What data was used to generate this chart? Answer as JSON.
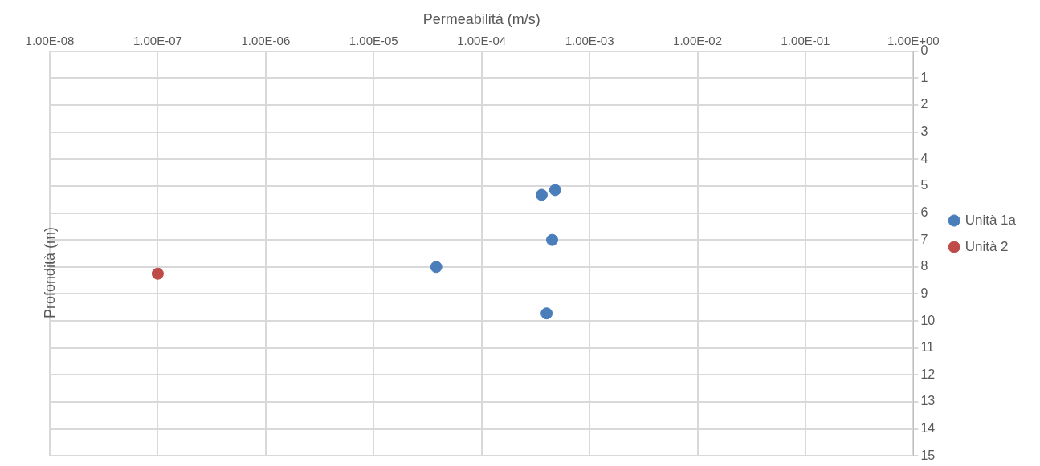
{
  "chart_data": {
    "type": "scatter",
    "xlabel": "Permeabilità (m/s)",
    "ylabel": "Profondità (m)",
    "series": [
      {
        "name": "Unità 1a",
        "color": "#4a7ebb",
        "x": [
          0.00048,
          0.00036,
          0.00045,
          3.8e-05,
          0.0004
        ],
        "values": [
          5.15,
          5.33,
          7.0,
          8.0,
          9.72
        ]
      },
      {
        "name": "Unità 2",
        "color": "#be4b48",
        "x": [
          1e-07
        ],
        "values": [
          8.25
        ]
      }
    ],
    "log": "x",
    "xlim": [
      1e-08,
      1
    ],
    "xticks": [
      {
        "value": 1e-08,
        "label": "1.00E-08"
      },
      {
        "value": 1e-07,
        "label": "1.00E-07"
      },
      {
        "value": 1e-06,
        "label": "1.00E-06"
      },
      {
        "value": 1e-05,
        "label": "1.00E-05"
      },
      {
        "value": 0.0001,
        "label": "1.00E-04"
      },
      {
        "value": 0.001,
        "label": "1.00E-03"
      },
      {
        "value": 0.01,
        "label": "1.00E-02"
      },
      {
        "value": 0.1,
        "label": "1.00E-01"
      },
      {
        "value": 1,
        "label": "1.00E+00"
      }
    ],
    "ylim": [
      15,
      0
    ],
    "yticks": [
      0,
      1,
      2,
      3,
      4,
      5,
      6,
      7,
      8,
      9,
      10,
      11,
      12,
      13,
      14,
      15
    ],
    "grid": true,
    "legend": "right",
    "marker": "circle"
  }
}
